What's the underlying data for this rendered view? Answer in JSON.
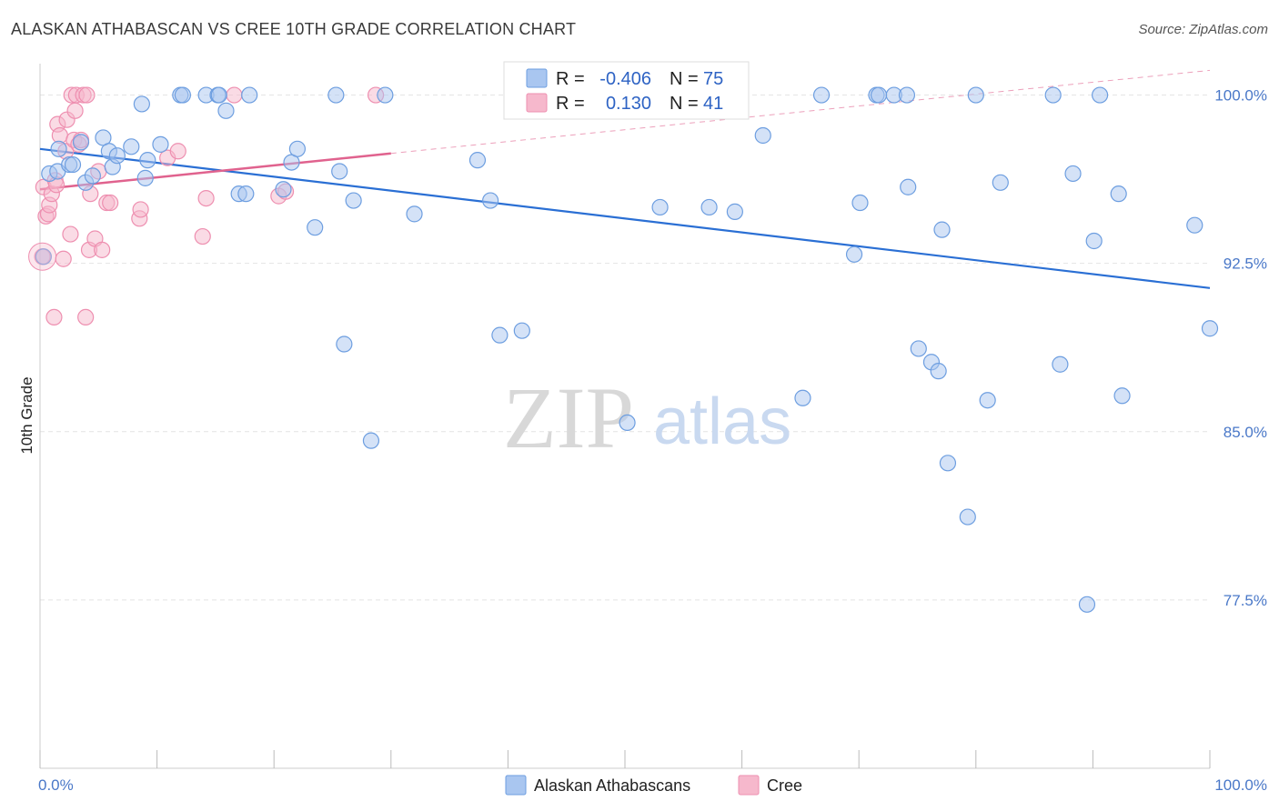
{
  "title": "ALASKAN ATHABASCAN VS CREE 10TH GRADE CORRELATION CHART",
  "source": "Source: ZipAtlas.com",
  "watermark": {
    "zip": "ZIP",
    "atlas": "atlas"
  },
  "colors": {
    "blue_fill": "#a9c6f0",
    "blue_stroke": "#6d9ee0",
    "blue_line": "#2a6fd4",
    "pink_fill": "#f6b8cc",
    "pink_stroke": "#ee8fb0",
    "pink_line": "#e0628e",
    "grid": "#e4e4e4",
    "tick_text": "#4a78c8"
  },
  "legend": [
    {
      "r_label": "R =",
      "r_value": "-0.406",
      "n_label": "N =",
      "n_value": "75",
      "color": "#a9c6f0"
    },
    {
      "r_label": "R =",
      "r_value": "0.130",
      "n_label": "N =",
      "n_value": "41",
      "color": "#f6b8cc"
    }
  ],
  "chart_data": {
    "type": "scatter",
    "title": "ALASKAN ATHABASCAN VS CREE 10TH GRADE CORRELATION CHART",
    "xlabel": "",
    "ylabel": "10th Grade",
    "xlim": [
      0,
      100
    ],
    "ylim": [
      70.0,
      101.4
    ],
    "x_tick_labels": [
      "0.0%",
      "100.0%"
    ],
    "y_ticks": [
      77.5,
      85.0,
      92.5,
      100.0
    ],
    "y_tick_labels": [
      "77.5%",
      "85.0%",
      "92.5%",
      "100.0%"
    ],
    "grid": "horizontal dashed",
    "legend_position": "bottom",
    "series": [
      {
        "name": "Alaskan Athabascans",
        "color": "#a9c6f0",
        "trend": {
          "x": [
            0,
            100
          ],
          "y": [
            97.6,
            91.4
          ]
        },
        "points": [
          [
            0.3,
            92.8
          ],
          [
            0.8,
            96.5
          ],
          [
            1.5,
            96.6
          ],
          [
            1.6,
            97.6
          ],
          [
            2.5,
            96.9
          ],
          [
            2.8,
            96.9
          ],
          [
            3.5,
            97.9
          ],
          [
            3.9,
            96.1
          ],
          [
            4.5,
            96.4
          ],
          [
            5.4,
            98.1
          ],
          [
            5.9,
            97.5
          ],
          [
            6.2,
            96.8
          ],
          [
            6.6,
            97.3
          ],
          [
            7.8,
            97.7
          ],
          [
            8.7,
            99.6
          ],
          [
            9.0,
            96.3
          ],
          [
            9.2,
            97.1
          ],
          [
            10.3,
            97.8
          ],
          [
            12.0,
            100.0
          ],
          [
            12.2,
            100.0
          ],
          [
            14.2,
            100.0
          ],
          [
            15.2,
            100.0
          ],
          [
            15.3,
            100.0
          ],
          [
            15.9,
            99.3
          ],
          [
            17.0,
            95.6
          ],
          [
            17.6,
            95.6
          ],
          [
            17.9,
            100.0
          ],
          [
            20.8,
            95.8
          ],
          [
            21.5,
            97.0
          ],
          [
            22.0,
            97.6
          ],
          [
            23.5,
            94.1
          ],
          [
            25.3,
            100.0
          ],
          [
            25.6,
            96.6
          ],
          [
            26.0,
            88.9
          ],
          [
            26.8,
            95.3
          ],
          [
            28.3,
            84.6
          ],
          [
            29.5,
            100.0
          ],
          [
            32.0,
            94.7
          ],
          [
            37.4,
            97.1
          ],
          [
            38.5,
            95.3
          ],
          [
            39.3,
            89.3
          ],
          [
            41.2,
            89.5
          ],
          [
            50.2,
            85.4
          ],
          [
            53.0,
            95.0
          ],
          [
            57.2,
            95.0
          ],
          [
            59.4,
            94.8
          ],
          [
            61.8,
            98.2
          ],
          [
            65.2,
            86.5
          ],
          [
            66.8,
            100.0
          ],
          [
            69.6,
            92.9
          ],
          [
            70.1,
            95.2
          ],
          [
            71.5,
            100.0
          ],
          [
            71.7,
            100.0
          ],
          [
            73.0,
            100.0
          ],
          [
            74.1,
            100.0
          ],
          [
            74.2,
            95.9
          ],
          [
            75.1,
            88.7
          ],
          [
            76.2,
            88.1
          ],
          [
            76.8,
            87.7
          ],
          [
            77.1,
            94.0
          ],
          [
            77.6,
            83.6
          ],
          [
            79.3,
            81.2
          ],
          [
            80.0,
            100.0
          ],
          [
            81.0,
            86.4
          ],
          [
            82.1,
            96.1
          ],
          [
            86.6,
            100.0
          ],
          [
            87.2,
            88.0
          ],
          [
            88.3,
            96.5
          ],
          [
            89.5,
            77.3
          ],
          [
            90.1,
            93.5
          ],
          [
            90.6,
            100.0
          ],
          [
            92.2,
            95.6
          ],
          [
            92.5,
            86.6
          ],
          [
            98.7,
            94.2
          ],
          [
            100.0,
            89.6
          ]
        ]
      },
      {
        "name": "Cree",
        "color": "#f6b8cc",
        "trend": {
          "x": [
            0,
            30
          ],
          "y": [
            95.8,
            97.4
          ],
          "dashed_extension": {
            "x": [
              30,
              100
            ],
            "y": [
              97.4,
              101.1
            ]
          }
        },
        "points": [
          [
            0.2,
            92.8
          ],
          [
            0.3,
            95.9
          ],
          [
            0.5,
            94.6
          ],
          [
            0.7,
            94.7
          ],
          [
            0.8,
            95.1
          ],
          [
            1.0,
            95.6
          ],
          [
            1.2,
            90.1
          ],
          [
            1.3,
            96.2
          ],
          [
            1.4,
            96.0
          ],
          [
            1.5,
            98.7
          ],
          [
            1.7,
            98.2
          ],
          [
            2.0,
            92.7
          ],
          [
            2.2,
            97.5
          ],
          [
            2.3,
            98.9
          ],
          [
            2.6,
            93.8
          ],
          [
            2.7,
            100.0
          ],
          [
            2.9,
            98.0
          ],
          [
            3.0,
            99.3
          ],
          [
            3.1,
            100.0
          ],
          [
            3.3,
            97.8
          ],
          [
            3.5,
            98.0
          ],
          [
            3.7,
            100.0
          ],
          [
            3.9,
            90.1
          ],
          [
            4.0,
            100.0
          ],
          [
            4.2,
            93.1
          ],
          [
            4.3,
            95.6
          ],
          [
            4.7,
            93.6
          ],
          [
            5.0,
            96.6
          ],
          [
            5.3,
            93.1
          ],
          [
            5.7,
            95.2
          ],
          [
            6.0,
            95.2
          ],
          [
            8.5,
            94.5
          ],
          [
            8.6,
            94.9
          ],
          [
            10.9,
            97.2
          ],
          [
            11.8,
            97.5
          ],
          [
            13.9,
            93.7
          ],
          [
            14.2,
            95.4
          ],
          [
            16.6,
            100.0
          ],
          [
            20.4,
            95.5
          ],
          [
            21.0,
            95.7
          ],
          [
            28.7,
            100.0
          ]
        ]
      }
    ]
  }
}
